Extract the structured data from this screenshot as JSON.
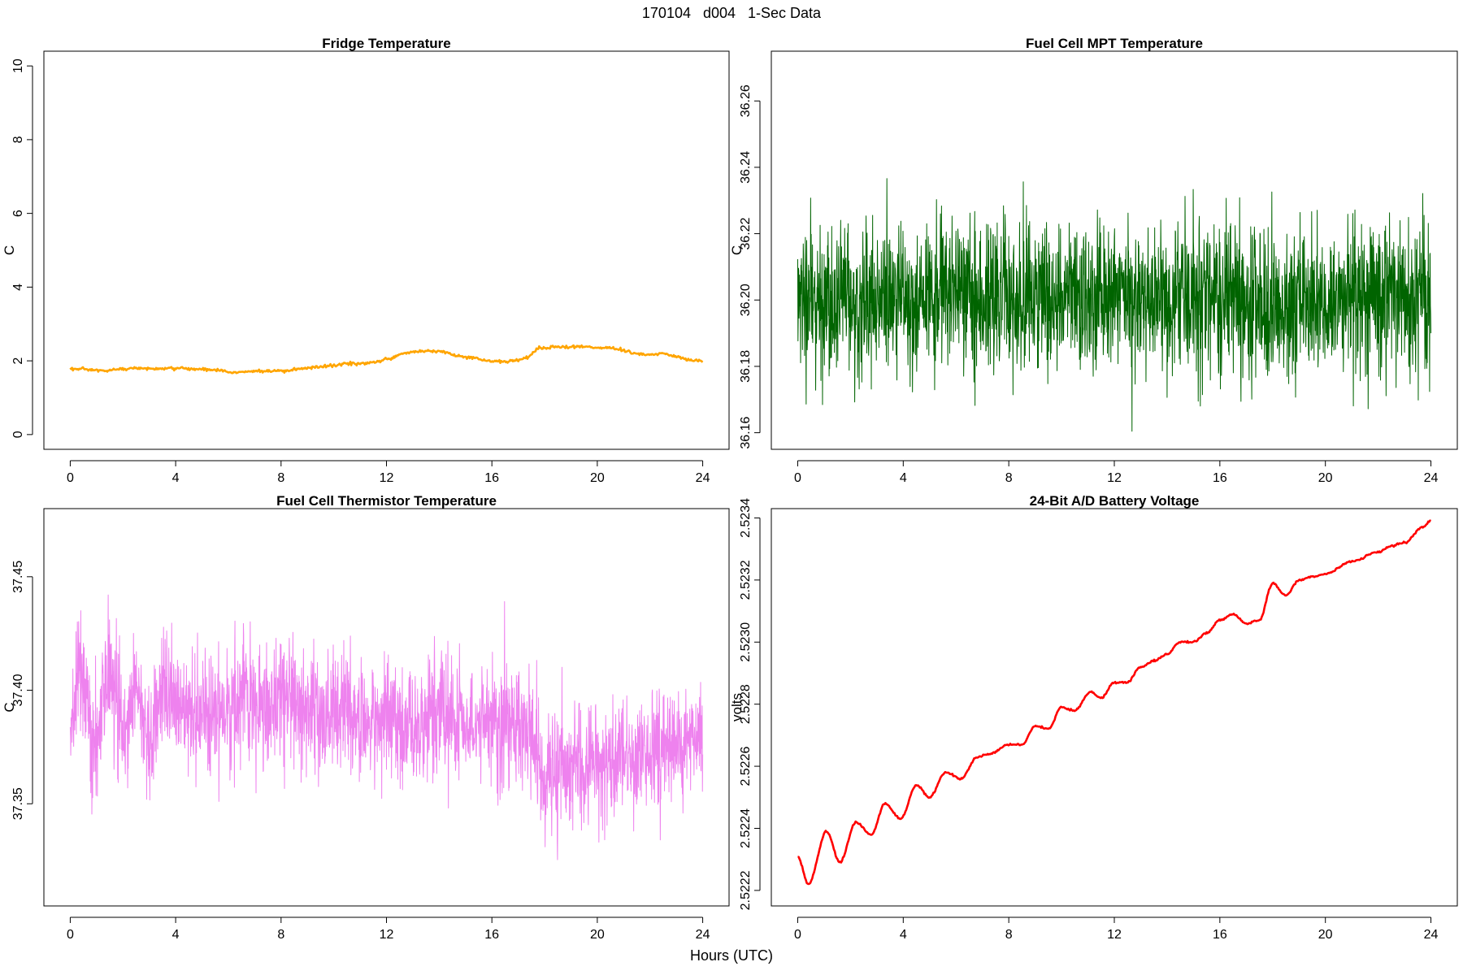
{
  "page": {
    "title": "170104   d004   1-Sec Data",
    "xlabel": "Hours (UTC)"
  },
  "chart_data": [
    {
      "id": "fridge",
      "type": "line",
      "title": "Fridge Temperature",
      "ylabel": "C",
      "color": "#FFA500",
      "xlim": [
        -1,
        25
      ],
      "ylim": [
        -0.4,
        10.4
      ],
      "xticks": [
        0,
        4,
        8,
        12,
        16,
        20,
        24
      ],
      "yticks": [
        0,
        2,
        4,
        6,
        8,
        10
      ],
      "ytick_labels": [
        "0",
        "2",
        "4",
        "6",
        "8",
        "10"
      ],
      "noise": 0.02,
      "series": [
        {
          "name": "Fridge Temperature",
          "x": [
            0,
            1,
            1.3,
            2,
            2.5,
            3.5,
            4,
            5,
            5.8,
            6,
            6.5,
            7,
            8,
            9,
            10,
            10.5,
            11,
            11.5,
            12,
            12.8,
            13.5,
            14,
            15,
            16,
            16.5,
            17,
            17.3,
            17.8,
            18.5,
            19.5,
            20.5,
            21.5,
            22,
            22.5,
            23,
            23.5,
            24
          ],
          "y": [
            1.78,
            1.75,
            1.72,
            1.78,
            1.8,
            1.78,
            1.8,
            1.77,
            1.75,
            1.68,
            1.7,
            1.72,
            1.72,
            1.8,
            1.87,
            1.93,
            1.92,
            1.95,
            2.05,
            2.23,
            2.27,
            2.25,
            2.1,
            2.0,
            1.98,
            2.02,
            2.08,
            2.35,
            2.38,
            2.38,
            2.35,
            2.2,
            2.15,
            2.2,
            2.12,
            2.03,
            2.0
          ]
        }
      ]
    },
    {
      "id": "mpt",
      "type": "line",
      "title": "Fuel Cell MPT Temperature",
      "ylabel": "C",
      "color": "#006400",
      "xlim": [
        -1,
        25
      ],
      "ylim": [
        36.155,
        36.275
      ],
      "xticks": [
        0,
        4,
        8,
        12,
        16,
        20,
        24
      ],
      "yticks": [
        36.16,
        36.18,
        36.2,
        36.22,
        36.24,
        36.26
      ],
      "ytick_labels": [
        "36.16",
        "36.18",
        "36.20",
        "36.22",
        "36.24",
        "36.26"
      ],
      "noise": 0.011,
      "series": [
        {
          "name": "Fuel Cell MPT Temperature",
          "x": [
            0,
            2,
            4,
            6,
            8,
            10,
            12,
            14,
            16,
            18,
            20,
            22,
            24
          ],
          "y": [
            36.199,
            36.2,
            36.2,
            36.201,
            36.2,
            36.2,
            36.2,
            36.2,
            36.2,
            36.199,
            36.2,
            36.2,
            36.2
          ]
        }
      ]
    },
    {
      "id": "thermistor",
      "type": "line",
      "title": "Fuel Cell Thermistor Temperature",
      "ylabel": "C",
      "color": "#EE82EE",
      "xlim": [
        -1,
        25
      ],
      "ylim": [
        37.305,
        37.48
      ],
      "xticks": [
        0,
        4,
        8,
        12,
        16,
        20,
        24
      ],
      "yticks": [
        37.35,
        37.4,
        37.45
      ],
      "ytick_labels": [
        "37.35",
        "37.40",
        "37.45"
      ],
      "noise": 0.013,
      "series": [
        {
          "name": "Fuel Cell Thermistor Temperature",
          "x": [
            0,
            0.4,
            0.9,
            1.5,
            2.0,
            2.5,
            3.0,
            3.5,
            4.0,
            5.0,
            6.0,
            6.5,
            7.0,
            8.0,
            10.0,
            12.0,
            13.0,
            14.0,
            16.0,
            17.0,
            17.5,
            18.0,
            18.5,
            19.5,
            20.5,
            21.5,
            23.0,
            24.0
          ],
          "y": [
            37.39,
            37.405,
            37.375,
            37.405,
            37.38,
            37.4,
            37.378,
            37.4,
            37.393,
            37.39,
            37.39,
            37.397,
            37.393,
            37.393,
            37.39,
            37.388,
            37.383,
            37.387,
            37.385,
            37.383,
            37.375,
            37.36,
            37.365,
            37.368,
            37.372,
            37.372,
            37.375,
            37.373
          ]
        }
      ]
    },
    {
      "id": "battery",
      "type": "line",
      "title": "24-Bit A/D Battery Voltage",
      "ylabel": "volts",
      "color": "#FF0000",
      "xlim": [
        -1,
        25
      ],
      "ylim": [
        2.52215,
        2.52343
      ],
      "xticks": [
        0,
        4,
        8,
        12,
        16,
        20,
        24
      ],
      "yticks": [
        2.5222,
        2.5224,
        2.5226,
        2.5228,
        2.523,
        2.5232,
        2.5234
      ],
      "ytick_labels": [
        "2.5222",
        "2.5224",
        "2.5226",
        "2.5228",
        "2.5230",
        "2.5232",
        "2.5234"
      ],
      "noise": 1.5e-06,
      "series": [
        {
          "name": "24-Bit A/D Battery Voltage",
          "x": [
            0,
            0.4,
            1.1,
            1.6,
            2.2,
            2.8,
            3.3,
            3.9,
            4.5,
            5.0,
            5.6,
            6.2,
            6.8,
            7.3,
            8.0,
            8.5,
            9.0,
            9.5,
            10.0,
            10.5,
            11.1,
            11.5,
            12.0,
            12.5,
            13.0,
            13.5,
            14.0,
            14.5,
            15.0,
            15.5,
            16.0,
            16.5,
            17.0,
            17.5,
            18.0,
            18.5,
            19.0,
            19.5,
            20.0,
            21.0,
            22.0,
            22.5,
            23.0,
            23.7,
            24.0
          ],
          "y": [
            2.52231,
            2.52222,
            2.52239,
            2.52229,
            2.52242,
            2.52238,
            2.52248,
            2.52243,
            2.52254,
            2.5225,
            2.52258,
            2.52256,
            2.52263,
            2.52264,
            2.52267,
            2.52267,
            2.52273,
            2.52272,
            2.52279,
            2.52278,
            2.52284,
            2.52282,
            2.52287,
            2.52287,
            2.52292,
            2.52294,
            2.52296,
            2.523,
            2.523,
            2.52303,
            2.52307,
            2.52309,
            2.52306,
            2.52307,
            2.52319,
            2.52315,
            2.5232,
            2.52321,
            2.52322,
            2.52326,
            2.52329,
            2.52331,
            2.52332,
            2.52337,
            2.52339
          ]
        }
      ]
    }
  ]
}
